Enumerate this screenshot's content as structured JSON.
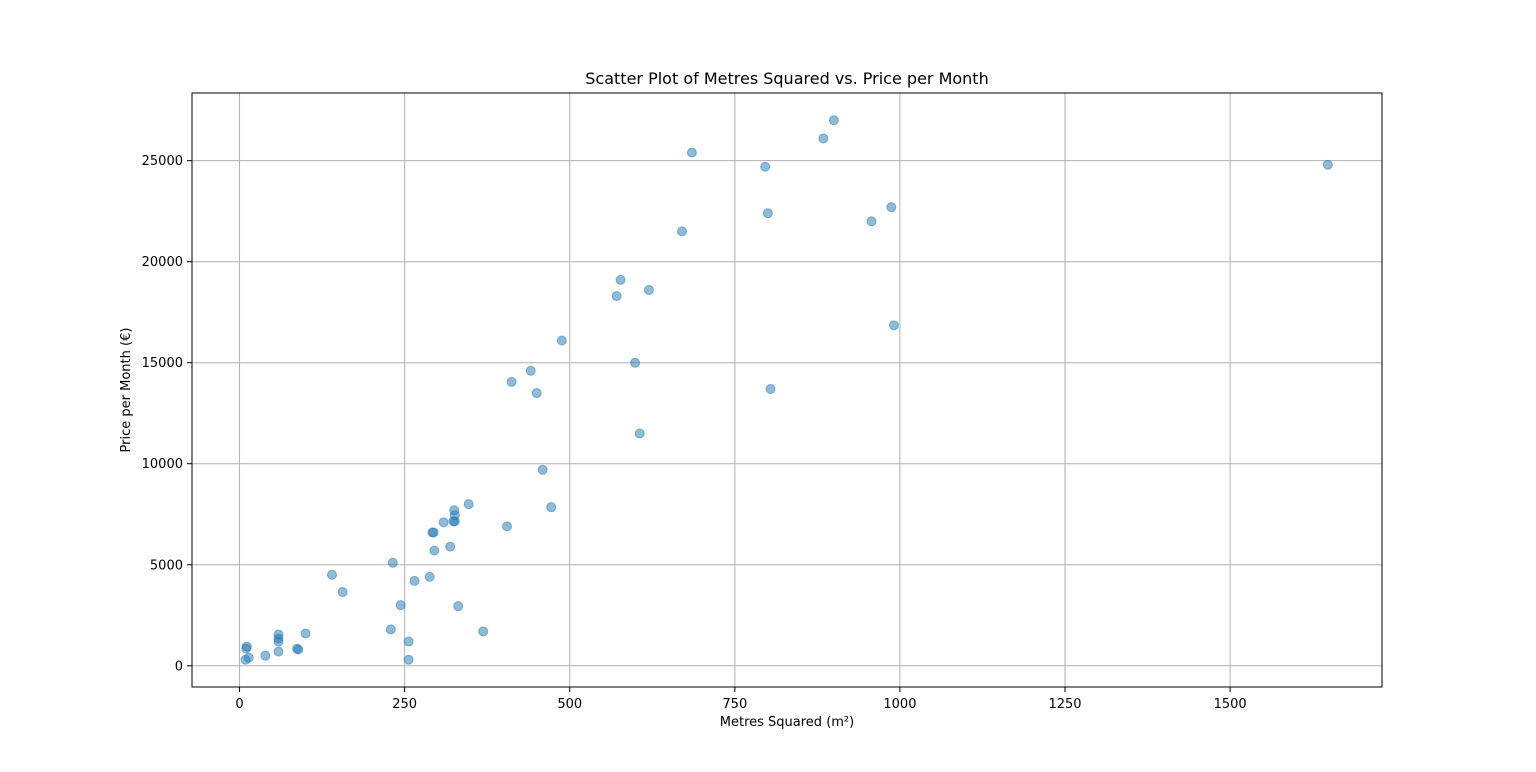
{
  "chart_data": {
    "type": "scatter",
    "title": "Scatter Plot of Metres Squared vs. Price per Month",
    "xlabel": "Metres Squared (m²)",
    "ylabel": "Price per Month (€)",
    "xlim": [
      -72,
      1730
    ],
    "ylim": [
      -1050,
      28350
    ],
    "x_ticks": [
      0,
      250,
      500,
      750,
      1000,
      1250,
      1500
    ],
    "y_ticks": [
      0,
      5000,
      10000,
      15000,
      20000,
      25000
    ],
    "grid": true,
    "marker_color": "#1f77b4",
    "marker_alpha": 0.5,
    "points": [
      {
        "x": 10,
        "y": 850
      },
      {
        "x": 11,
        "y": 950
      },
      {
        "x": 9,
        "y": 300
      },
      {
        "x": 14,
        "y": 400
      },
      {
        "x": 39,
        "y": 500
      },
      {
        "x": 59,
        "y": 1550
      },
      {
        "x": 59,
        "y": 1350
      },
      {
        "x": 59,
        "y": 1200
      },
      {
        "x": 59,
        "y": 700
      },
      {
        "x": 87,
        "y": 850
      },
      {
        "x": 89,
        "y": 800
      },
      {
        "x": 100,
        "y": 1600
      },
      {
        "x": 140,
        "y": 4500
      },
      {
        "x": 156,
        "y": 3650
      },
      {
        "x": 229,
        "y": 1800
      },
      {
        "x": 232,
        "y": 5100
      },
      {
        "x": 244,
        "y": 3000
      },
      {
        "x": 256,
        "y": 1200
      },
      {
        "x": 256,
        "y": 300
      },
      {
        "x": 265,
        "y": 4200
      },
      {
        "x": 288,
        "y": 4400
      },
      {
        "x": 292,
        "y": 6600
      },
      {
        "x": 294,
        "y": 6600
      },
      {
        "x": 295,
        "y": 5700
      },
      {
        "x": 309,
        "y": 7100
      },
      {
        "x": 319,
        "y": 5900
      },
      {
        "x": 324,
        "y": 7150
      },
      {
        "x": 325,
        "y": 7700
      },
      {
        "x": 326,
        "y": 7450
      },
      {
        "x": 326,
        "y": 7150
      },
      {
        "x": 331,
        "y": 2950
      },
      {
        "x": 347,
        "y": 8000
      },
      {
        "x": 369,
        "y": 1700
      },
      {
        "x": 405,
        "y": 6900
      },
      {
        "x": 412,
        "y": 14050
      },
      {
        "x": 441,
        "y": 14600
      },
      {
        "x": 450,
        "y": 13500
      },
      {
        "x": 459,
        "y": 9700
      },
      {
        "x": 472,
        "y": 7850
      },
      {
        "x": 488,
        "y": 16100
      },
      {
        "x": 571,
        "y": 18300
      },
      {
        "x": 577,
        "y": 19100
      },
      {
        "x": 599,
        "y": 15000
      },
      {
        "x": 606,
        "y": 11500
      },
      {
        "x": 620,
        "y": 18600
      },
      {
        "x": 670,
        "y": 21500
      },
      {
        "x": 685,
        "y": 25400
      },
      {
        "x": 796,
        "y": 24700
      },
      {
        "x": 800,
        "y": 22400
      },
      {
        "x": 804,
        "y": 13700
      },
      {
        "x": 884,
        "y": 26100
      },
      {
        "x": 900,
        "y": 27000
      },
      {
        "x": 957,
        "y": 22000
      },
      {
        "x": 987,
        "y": 22700
      },
      {
        "x": 991,
        "y": 16850
      },
      {
        "x": 1648,
        "y": 24800
      }
    ]
  }
}
